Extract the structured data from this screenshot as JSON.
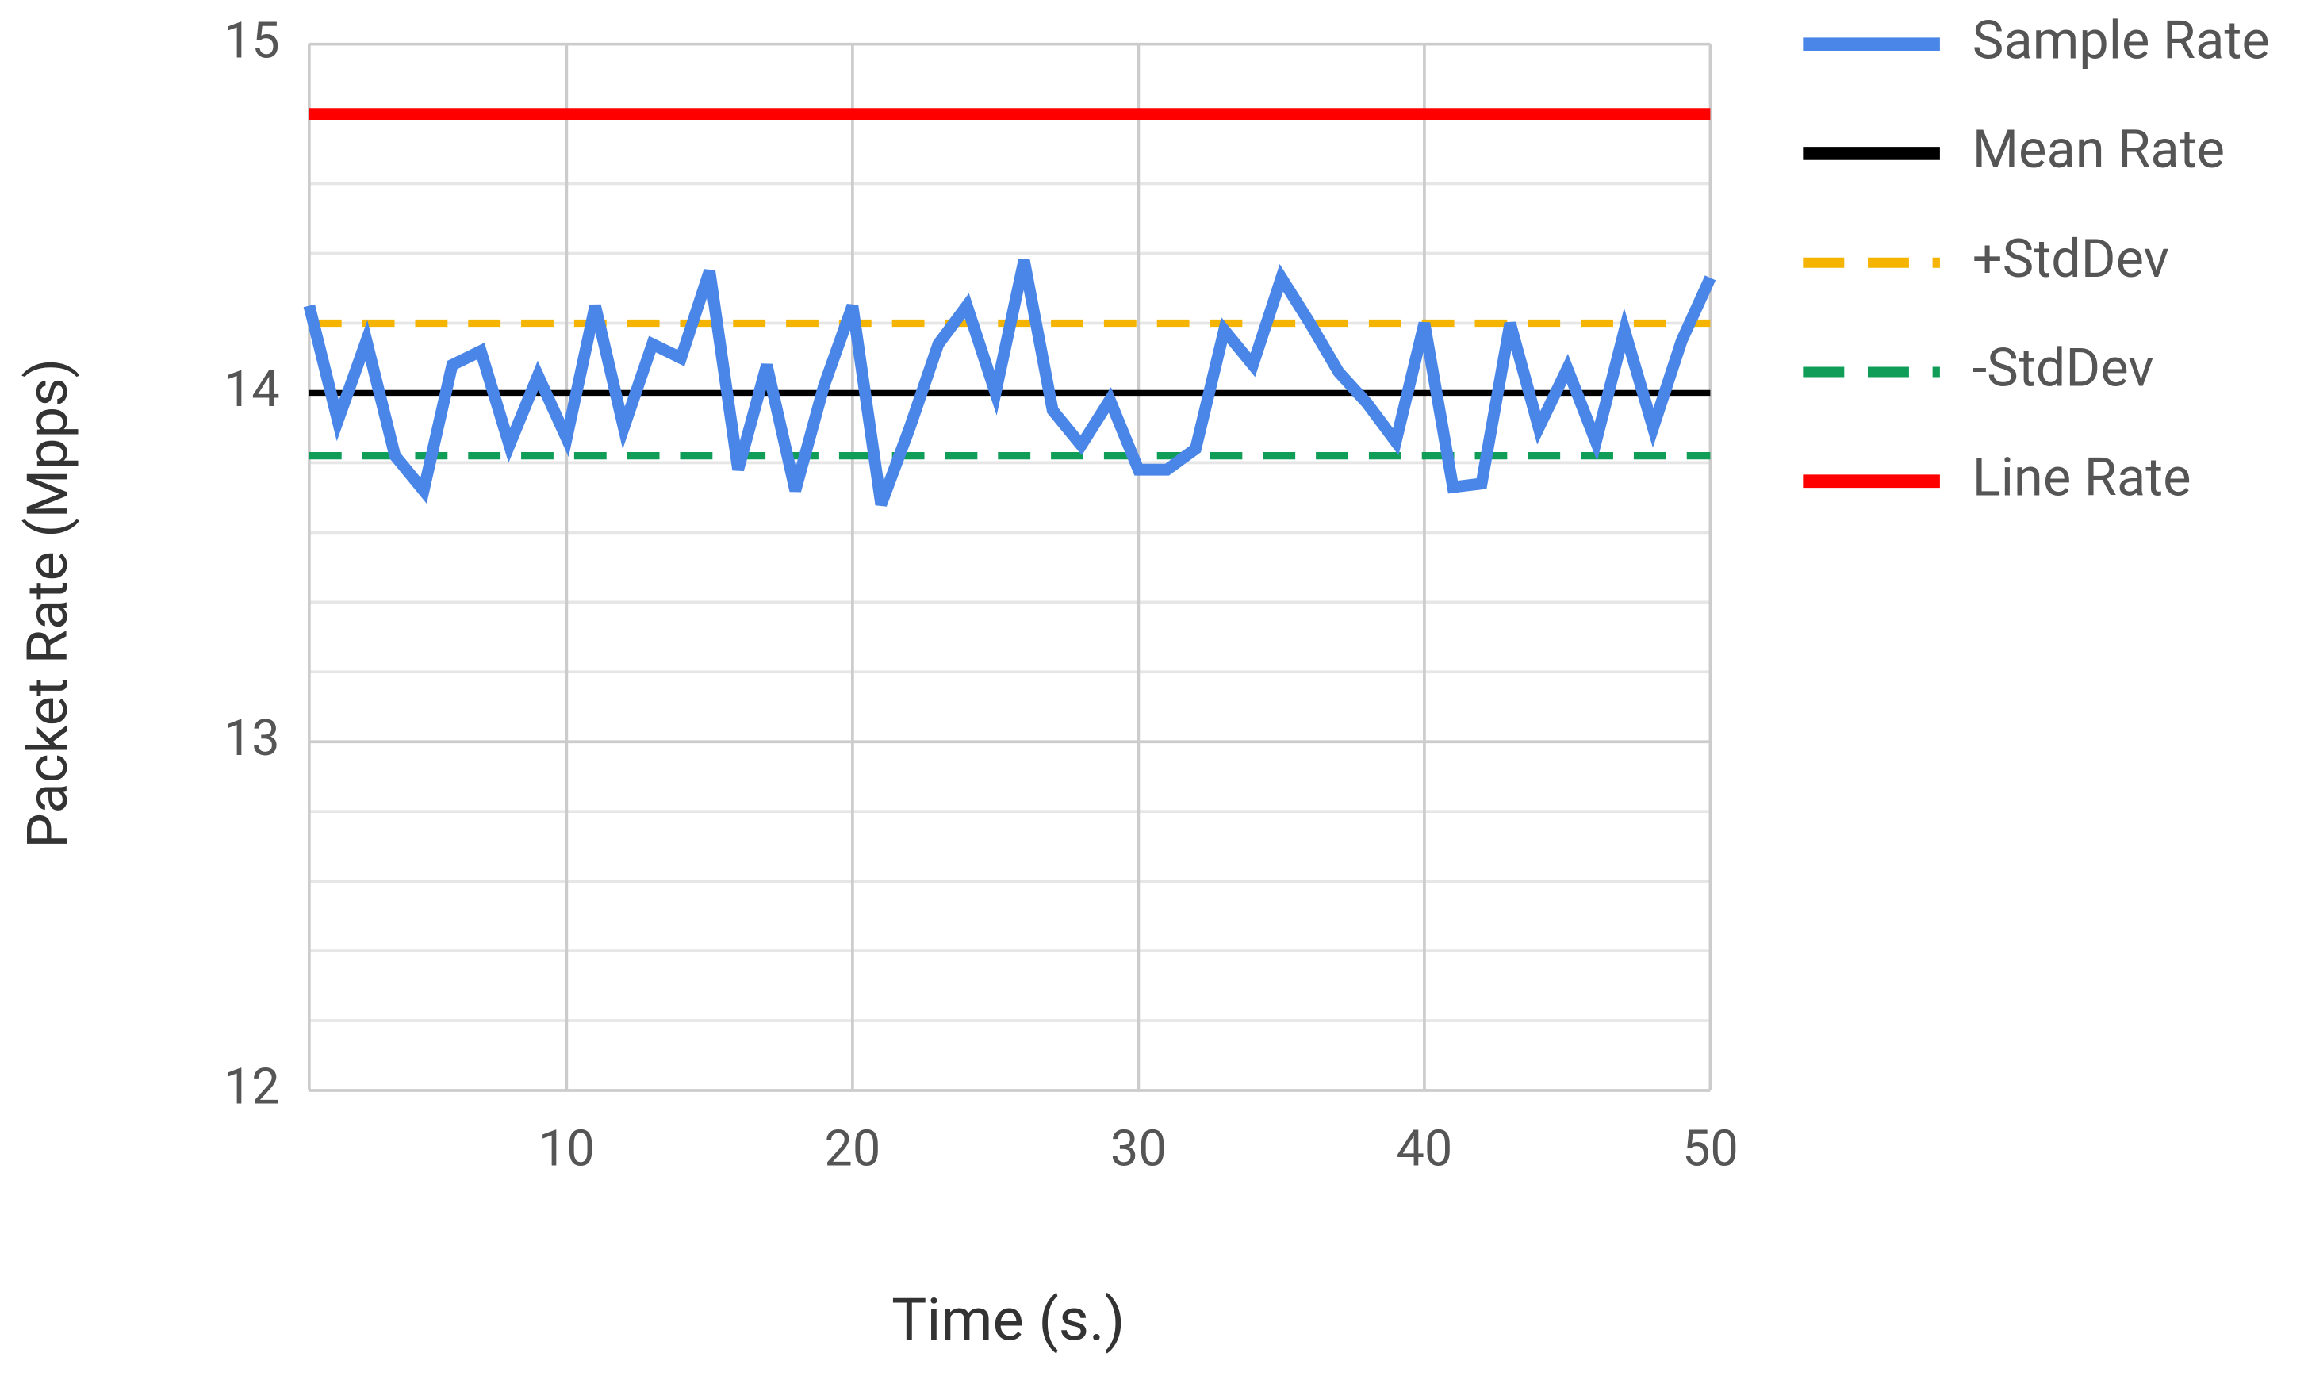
{
  "chart_data": {
    "type": "line",
    "x_label": "Time (s.)",
    "y_label": "Packet Rate (Mpps)",
    "x": [
      1,
      2,
      3,
      4,
      5,
      6,
      7,
      8,
      9,
      10,
      11,
      12,
      13,
      14,
      15,
      16,
      17,
      18,
      19,
      20,
      21,
      22,
      23,
      24,
      25,
      26,
      27,
      28,
      29,
      30,
      31,
      32,
      33,
      34,
      35,
      36,
      37,
      38,
      39,
      40,
      41,
      42,
      43,
      44,
      45,
      46,
      47,
      48,
      49,
      50
    ],
    "xlim": [
      1,
      50
    ],
    "xticks": [
      10,
      20,
      30,
      40,
      50
    ],
    "ylim": [
      12,
      15
    ],
    "yticks": [
      12,
      13,
      14,
      15
    ],
    "grid": true,
    "minor_grid": true,
    "legend": "right",
    "series": [
      {
        "name": "Sample Rate",
        "color": "#4a86e8",
        "values": [
          14.25,
          13.92,
          14.15,
          13.82,
          13.72,
          14.08,
          14.12,
          13.85,
          14.05,
          13.87,
          14.25,
          13.9,
          14.14,
          14.1,
          14.35,
          13.78,
          14.08,
          13.72,
          14.02,
          14.25,
          13.68,
          13.9,
          14.14,
          14.25,
          14.0,
          14.38,
          13.95,
          13.85,
          13.98,
          13.78,
          13.78,
          13.84,
          14.18,
          14.08,
          14.33,
          14.2,
          14.06,
          13.97,
          13.86,
          14.2,
          13.73,
          13.74,
          14.2,
          13.9,
          14.07,
          13.86,
          14.18,
          13.9,
          14.15,
          14.33
        ]
      },
      {
        "name": "Mean Rate",
        "color": "#000000",
        "values": [
          14,
          14,
          14,
          14,
          14,
          14,
          14,
          14,
          14,
          14,
          14,
          14,
          14,
          14,
          14,
          14,
          14,
          14,
          14,
          14,
          14,
          14,
          14,
          14,
          14,
          14,
          14,
          14,
          14,
          14,
          14,
          14,
          14,
          14,
          14,
          14,
          14,
          14,
          14,
          14,
          14,
          14,
          14,
          14,
          14,
          14,
          14,
          14,
          14,
          14
        ]
      },
      {
        "name": "+StdDev",
        "color": "#f4b400",
        "dash": true,
        "values": [
          14.2,
          14.2,
          14.2,
          14.2,
          14.2,
          14.2,
          14.2,
          14.2,
          14.2,
          14.2,
          14.2,
          14.2,
          14.2,
          14.2,
          14.2,
          14.2,
          14.2,
          14.2,
          14.2,
          14.2,
          14.2,
          14.2,
          14.2,
          14.2,
          14.2,
          14.2,
          14.2,
          14.2,
          14.2,
          14.2,
          14.2,
          14.2,
          14.2,
          14.2,
          14.2,
          14.2,
          14.2,
          14.2,
          14.2,
          14.2,
          14.2,
          14.2,
          14.2,
          14.2,
          14.2,
          14.2,
          14.2,
          14.2,
          14.2,
          14.2
        ]
      },
      {
        "name": "-StdDev",
        "color": "#0f9d58",
        "dash": true,
        "values": [
          13.82,
          13.82,
          13.82,
          13.82,
          13.82,
          13.82,
          13.82,
          13.82,
          13.82,
          13.82,
          13.82,
          13.82,
          13.82,
          13.82,
          13.82,
          13.82,
          13.82,
          13.82,
          13.82,
          13.82,
          13.82,
          13.82,
          13.82,
          13.82,
          13.82,
          13.82,
          13.82,
          13.82,
          13.82,
          13.82,
          13.82,
          13.82,
          13.82,
          13.82,
          13.82,
          13.82,
          13.82,
          13.82,
          13.82,
          13.82,
          13.82,
          13.82,
          13.82,
          13.82,
          13.82,
          13.82,
          13.82,
          13.82,
          13.82,
          13.82
        ]
      },
      {
        "name": "Line Rate",
        "color": "#ff0000",
        "values": [
          14.8,
          14.8,
          14.8,
          14.8,
          14.8,
          14.8,
          14.8,
          14.8,
          14.8,
          14.8,
          14.8,
          14.8,
          14.8,
          14.8,
          14.8,
          14.8,
          14.8,
          14.8,
          14.8,
          14.8,
          14.8,
          14.8,
          14.8,
          14.8,
          14.8,
          14.8,
          14.8,
          14.8,
          14.8,
          14.8,
          14.8,
          14.8,
          14.8,
          14.8,
          14.8,
          14.8,
          14.8,
          14.8,
          14.8,
          14.8,
          14.8,
          14.8,
          14.8,
          14.8,
          14.8,
          14.8,
          14.8,
          14.8,
          14.8,
          14.8
        ]
      }
    ]
  }
}
